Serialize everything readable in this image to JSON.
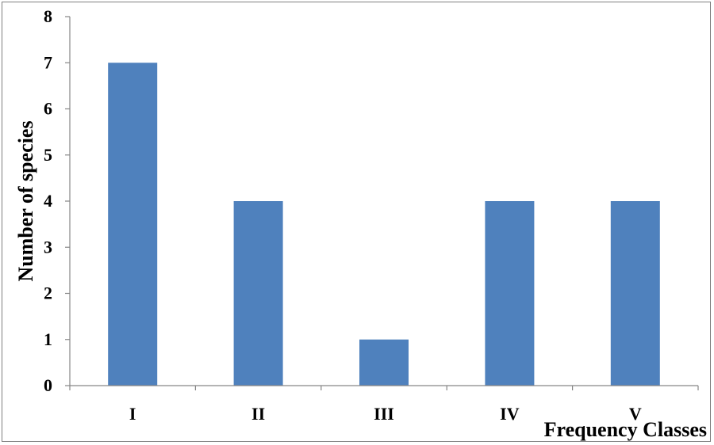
{
  "chart_data": {
    "type": "bar",
    "title": "",
    "xlabel": "Frequency Classes",
    "ylabel": "Number of species",
    "categories": [
      "I",
      "II",
      "III",
      "IV",
      "V"
    ],
    "values": [
      7,
      4,
      1,
      4,
      4
    ],
    "ylim": [
      0,
      8
    ],
    "yticks": [
      "0",
      "1",
      "2",
      "3",
      "4",
      "5",
      "6",
      "7",
      "8"
    ],
    "grid": false,
    "legend": "none",
    "bar_color": "#4F81BD",
    "axis_color": "#868686"
  }
}
